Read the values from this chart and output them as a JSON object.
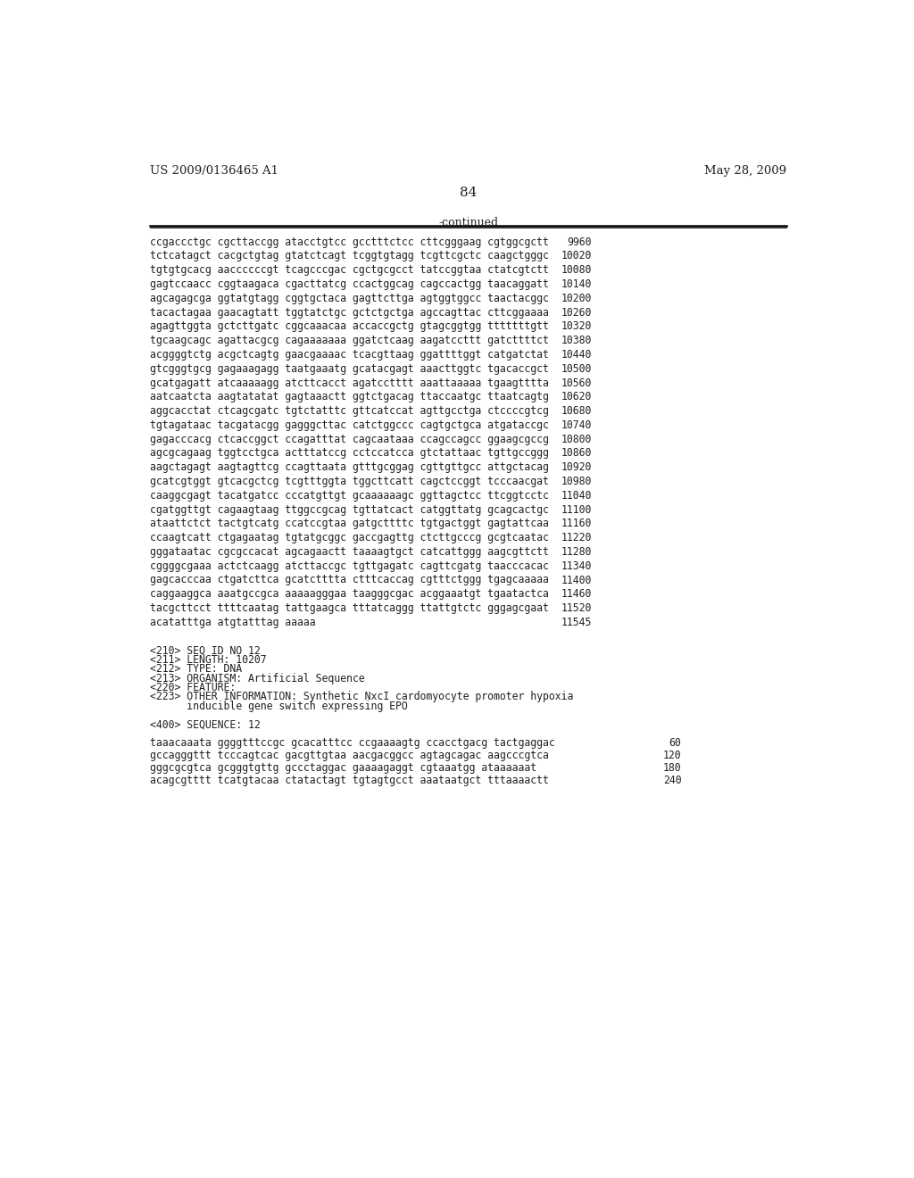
{
  "header_left": "US 2009/0136465 A1",
  "header_right": "May 28, 2009",
  "page_number": "84",
  "continued_label": "-continued",
  "background_color": "#ffffff",
  "text_color": "#231f20",
  "sequence_lines": [
    {
      "seq": "ccgaccctgc cgcttaccgg atacctgtcc gcctttctcc cttcgggaag cgtggcgctt",
      "num": "9960"
    },
    {
      "seq": "tctcatagct cacgctgtag gtatctcagt tcggtgtagg tcgttcgctc caagctgggc",
      "num": "10020"
    },
    {
      "seq": "tgtgtgcacg aaccccccgt tcagcccgac cgctgcgcct tatccggtaa ctatcgtctt",
      "num": "10080"
    },
    {
      "seq": "gagtccaacc cggtaagaca cgacttatcg ccactggcag cagccactgg taacaggatt",
      "num": "10140"
    },
    {
      "seq": "agcagagcga ggtatgtagg cggtgctaca gagttcttga agtggtggcc taactacggc",
      "num": "10200"
    },
    {
      "seq": "tacactagaa gaacagtatt tggtatctgc gctctgctga agccagttac cttcggaaaa",
      "num": "10260"
    },
    {
      "seq": "agagttggta gctcttgatc cggcaaacaa accaccgctg gtagcggtgg tttttttgtt",
      "num": "10320"
    },
    {
      "seq": "tgcaagcagc agattacgcg cagaaaaaaa ggatctcaag aagatccttt gatcttttct",
      "num": "10380"
    },
    {
      "seq": "acggggtctg acgctcagtg gaacgaaaac tcacgttaag ggattttggt catgatctat",
      "num": "10440"
    },
    {
      "seq": "gtcgggtgcg gagaaagagg taatgaaatg gcatacgagt aaacttggtc tgacaccgct",
      "num": "10500"
    },
    {
      "seq": "gcatgagatt atcaaaaagg atcttcacct agatcctttt aaattaaaaa tgaagtttta",
      "num": "10560"
    },
    {
      "seq": "aatcaatcta aagtatatat gagtaaactt ggtctgacag ttaccaatgc ttaatcagtg",
      "num": "10620"
    },
    {
      "seq": "aggcacctat ctcagcgatc tgtctatttc gttcatccat agttgcctga ctccccgtcg",
      "num": "10680"
    },
    {
      "seq": "tgtagataac tacgatacgg gagggcttac catctggccc cagtgctgca atgataccgc",
      "num": "10740"
    },
    {
      "seq": "gagacccacg ctcaccggct ccagatttat cagcaataaa ccagccagcc ggaagcgccg",
      "num": "10800"
    },
    {
      "seq": "agcgcagaag tggtcctgca actttatccg cctccatcca gtctattaac tgttgccggg",
      "num": "10860"
    },
    {
      "seq": "aagctagagt aagtagttcg ccagttaata gtttgcggag cgttgttgcc attgctacag",
      "num": "10920"
    },
    {
      "seq": "gcatcgtggt gtcacgctcg tcgtttggta tggcttcatt cagctccggt tcccaacgat",
      "num": "10980"
    },
    {
      "seq": "caaggcgagt tacatgatcc cccatgttgt gcaaaaaagc ggttagctcc ttcggtcctc",
      "num": "11040"
    },
    {
      "seq": "cgatggttgt cagaagtaag ttggccgcag tgttatcact catggttatg gcagcactgc",
      "num": "11100"
    },
    {
      "seq": "ataattctct tactgtcatg ccatccgtaa gatgcttttc tgtgactggt gagtattcaa",
      "num": "11160"
    },
    {
      "seq": "ccaagtcatt ctgagaatag tgtatgcggc gaccgagttg ctcttgcccg gcgtcaatac",
      "num": "11220"
    },
    {
      "seq": "gggataatac cgcgccacat agcagaactt taaaagtgct catcattggg aagcgttctt",
      "num": "11280"
    },
    {
      "seq": "cggggcgaaa actctcaagg atcttaccgc tgttgagatc cagttcgatg taacccacac",
      "num": "11340"
    },
    {
      "seq": "gagcacccaa ctgatcttca gcatctttta ctttcaccag cgtttctggg tgagcaaaaa",
      "num": "11400"
    },
    {
      "seq": "caggaaggca aaatgccgca aaaaagggaa taagggcgac acggaaatgt tgaatactca",
      "num": "11460"
    },
    {
      "seq": "tacgcttcct ttttcaatag tattgaagca tttatcaggg ttattgtctc gggagcgaat",
      "num": "11520"
    },
    {
      "seq": "acatatttga atgtatttag aaaaa",
      "num": "11545"
    }
  ],
  "meta_lines": [
    "<210> SEQ ID NO 12",
    "<211> LENGTH: 10207",
    "<212> TYPE: DNA",
    "<213> ORGANISM: Artificial Sequence",
    "<220> FEATURE:",
    "<223> OTHER INFORMATION: Synthetic NxcI cardomyocyte promoter hypoxia",
    "      inducible gene switch expressing EPO"
  ],
  "seq400_label": "<400> SEQUENCE: 12",
  "seq400_lines": [
    {
      "seq": "taaacaaata ggggtttccgc gcacatttcc ccgaaaagtg ccacctgacg tactgaggac",
      "num": "60"
    },
    {
      "seq": "gccagggttt tcccagtcac gacgttgtaa aacgacggcc agtagcagac aagcccgtca",
      "num": "120"
    },
    {
      "seq": "gggcgcgtca gcgggtgttg gccctaggac gaaaagaggt cgtaaatgg ataaaaaat",
      "num": "180"
    },
    {
      "seq": "acagcgtttt tcatgtacaa ctatactagt tgtagtgcct aaataatgct tttaaaactt",
      "num": "240"
    }
  ]
}
